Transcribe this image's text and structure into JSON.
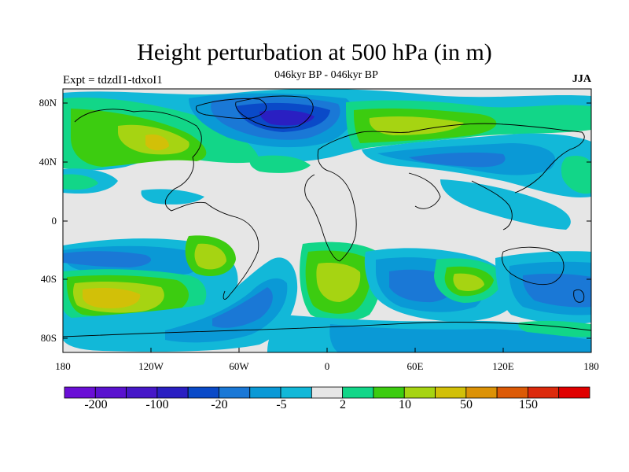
{
  "title": "Height perturbation at 500 hPa (in m)",
  "subtitle": "046kyr BP - 046kyr BP",
  "left_label": "Expt = tdzdI1-tdxoI1",
  "right_label": "JJA",
  "lat_ticks": [
    "80N",
    "40N",
    "0",
    "40S",
    "80S"
  ],
  "lon_ticks": [
    "180",
    "120W",
    "60W",
    "0",
    "60E",
    "120E",
    "180"
  ],
  "colorbar": {
    "colors": [
      "#6a0fd6",
      "#5a12cf",
      "#4617c8",
      "#2a1fc2",
      "#0a4ac8",
      "#1a78d6",
      "#0a99d6",
      "#12b8d8",
      "#e6e6e6",
      "#12d688",
      "#3ccc10",
      "#a6d412",
      "#d2c008",
      "#dc9206",
      "#dc5a06",
      "#dc2a0c",
      "#e00000"
    ],
    "labels": [
      "-200",
      "-100",
      "-20",
      "-5",
      "2",
      "10",
      "50",
      "150"
    ]
  },
  "palette": {
    "gray": "#e6e6e6",
    "cyan": "#12b8d8",
    "sky": "#0a99d6",
    "blue": "#1a78d6",
    "deep": "#0a4ac8",
    "deeper": "#2a1fc2",
    "teal": "#12d688",
    "green": "#3ccc10",
    "lime": "#a6d412",
    "yellow": "#d2c008",
    "orange": "#dc9206"
  }
}
